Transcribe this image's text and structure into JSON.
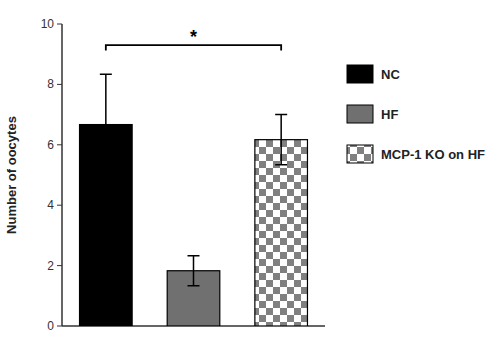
{
  "chart_data": {
    "type": "bar",
    "categories": [
      "NC",
      "HF",
      "MCP-1 KO on HF"
    ],
    "values": [
      6.67,
      1.83,
      6.17
    ],
    "errors": [
      1.67,
      0.5,
      0.83
    ],
    "colors": [
      "#000000",
      "#707070",
      "#808080"
    ],
    "ylabel": "Number of oocytes",
    "ylim": [
      0,
      10
    ],
    "yticks": [
      0,
      2,
      4,
      6,
      8,
      10
    ],
    "grid": false,
    "legend": "right",
    "tick_labels": "y",
    "annotation": {
      "text": "*",
      "from": "NC",
      "to": "MCP-1 KO on HF",
      "y": 9.3
    }
  }
}
